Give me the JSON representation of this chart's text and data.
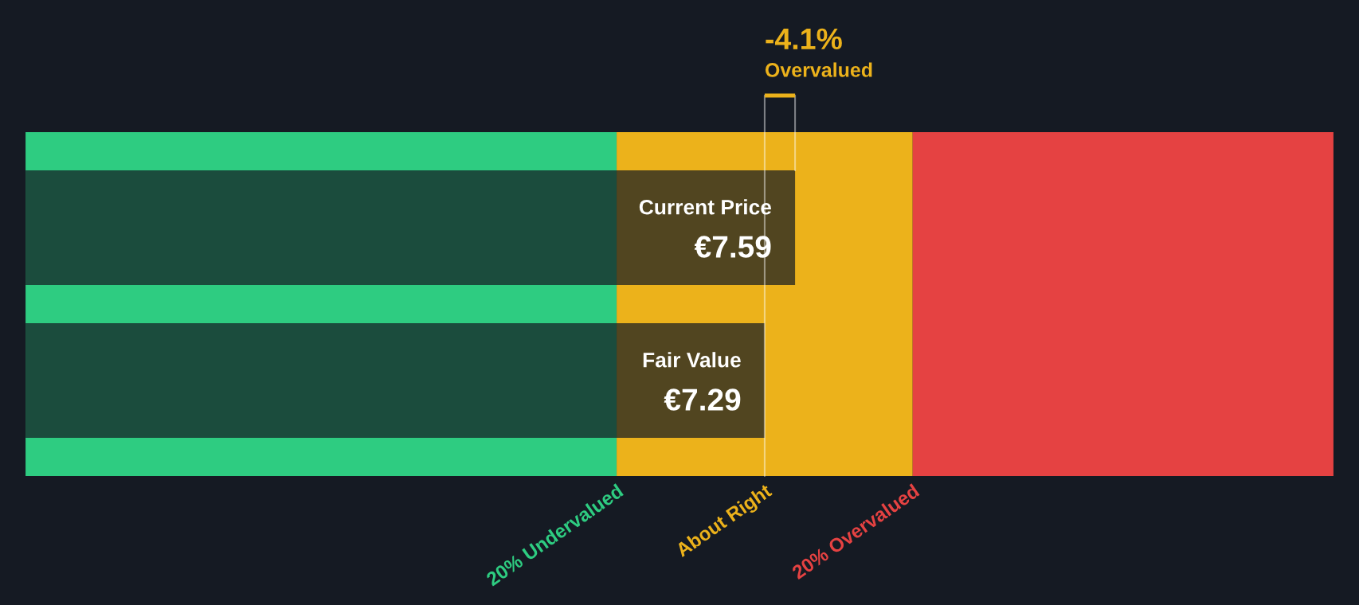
{
  "chart_data": {
    "type": "bar",
    "orientation": "horizontal",
    "categories": [
      "Current Price",
      "Fair Value"
    ],
    "values": [
      7.59,
      7.29
    ],
    "value_labels": [
      "€7.59",
      "€7.29"
    ],
    "color": "#151a23",
    "xlim": [
      0,
      12.9
    ],
    "tick_labels": false,
    "bands": [
      {
        "axis": "x",
        "from": 0,
        "to": 5.83,
        "label": "20% Undervalued",
        "color": "#2ecc81"
      },
      {
        "axis": "x",
        "from": 5.83,
        "to": 8.75,
        "label": "About Right",
        "color": "#ecb21b"
      },
      {
        "axis": "x",
        "from": 8.75,
        "to": 12.9,
        "label": "20% Overvalued",
        "color": "#e54242"
      }
    ],
    "annotations": [
      "-4.1%",
      "Overvalued"
    ]
  }
}
